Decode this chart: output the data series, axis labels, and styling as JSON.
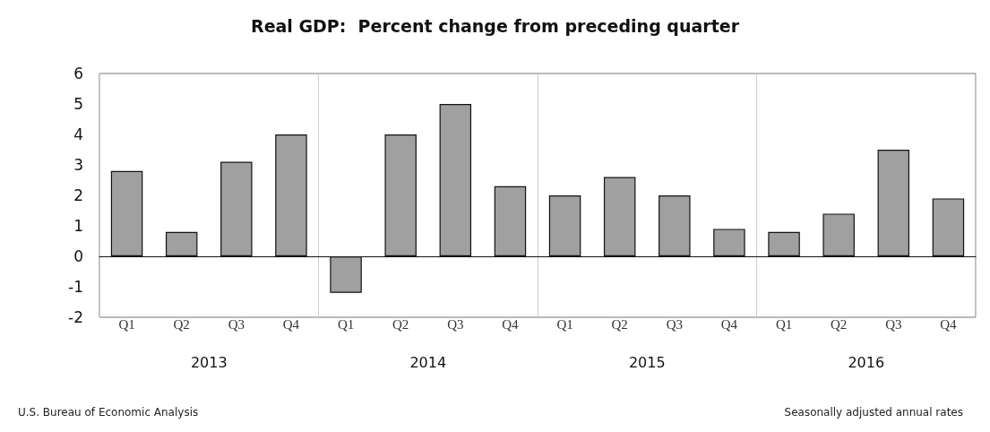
{
  "chart_data": {
    "type": "bar",
    "title": "Real GDP:  Percent change from preceding quarter",
    "categories": [
      "Q1",
      "Q2",
      "Q3",
      "Q4",
      "Q1",
      "Q2",
      "Q3",
      "Q4",
      "Q1",
      "Q2",
      "Q3",
      "Q4",
      "Q1",
      "Q2",
      "Q3",
      "Q4"
    ],
    "values": [
      2.8,
      0.8,
      3.1,
      4.0,
      -1.2,
      4.0,
      5.0,
      2.3,
      2.0,
      2.6,
      2.0,
      0.9,
      0.8,
      1.4,
      3.5,
      1.9
    ],
    "color": "#a0a0a0",
    "ylim": [
      -2,
      6
    ],
    "yticks": [
      -2,
      -1,
      0,
      1,
      2,
      3,
      4,
      5,
      6
    ],
    "grid": false,
    "annotations": [
      "2013",
      "2014",
      "2015",
      "2016",
      "U.S. Bureau of Economic Analysis",
      "Seasonally adjusted annual rates"
    ]
  }
}
